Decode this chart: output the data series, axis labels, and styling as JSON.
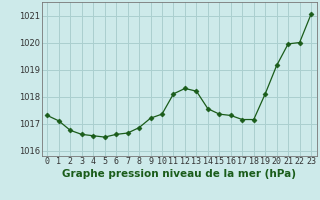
{
  "x": [
    0,
    1,
    2,
    3,
    4,
    5,
    6,
    7,
    8,
    9,
    10,
    11,
    12,
    13,
    14,
    15,
    16,
    17,
    18,
    19,
    20,
    21,
    22,
    23
  ],
  "y": [
    1017.3,
    1017.1,
    1016.75,
    1016.6,
    1016.55,
    1016.5,
    1016.6,
    1016.65,
    1016.85,
    1017.2,
    1017.35,
    1018.1,
    1018.3,
    1018.2,
    1017.55,
    1017.35,
    1017.3,
    1017.15,
    1017.15,
    1018.1,
    1019.15,
    1019.95,
    1020.0,
    1021.05
  ],
  "line_color": "#1a5c1a",
  "marker": "D",
  "marker_size": 2.5,
  "bg_color": "#cdeaea",
  "grid_color": "#aacfcf",
  "xlabel": "Graphe pression niveau de la mer (hPa)",
  "ylim": [
    1015.8,
    1021.5
  ],
  "yticks": [
    1016,
    1017,
    1018,
    1019,
    1020,
    1021
  ],
  "xtick_labels": [
    "0",
    "1",
    "2",
    "3",
    "4",
    "5",
    "6",
    "7",
    "8",
    "9",
    "1011",
    "1213",
    "1415",
    "1617",
    "1819",
    "2021",
    "2223"
  ],
  "xlabel_fontsize": 7.5,
  "tick_fontsize": 6.0
}
